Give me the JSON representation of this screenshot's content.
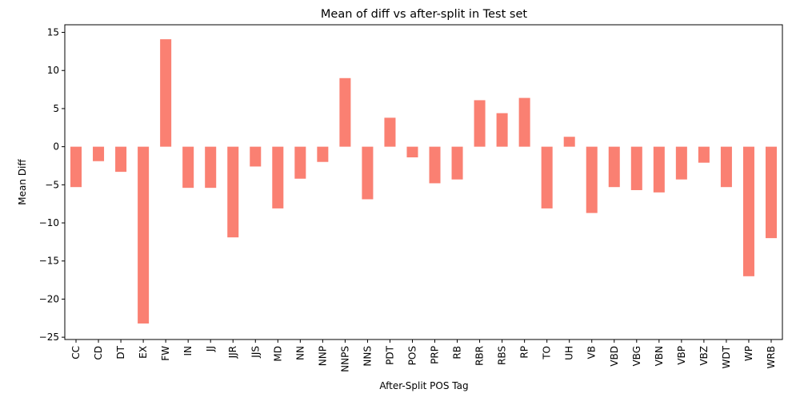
{
  "chart_data": {
    "type": "bar",
    "title": "Mean of diff vs after-split in Test set",
    "xlabel": "After-Split POS Tag",
    "ylabel": "Mean Diff",
    "ylim": [
      -25.3,
      16.0
    ],
    "yticks": [
      15,
      10,
      5,
      0,
      -5,
      -10,
      -15,
      -20,
      -25
    ],
    "grid": false,
    "legend": "none",
    "bar_color": "#fa8072",
    "categories": [
      "CC",
      "CD",
      "DT",
      "EX",
      "FW",
      "IN",
      "JJ",
      "JJR",
      "JJS",
      "MD",
      "NN",
      "NNP",
      "NNPS",
      "NNS",
      "PDT",
      "POS",
      "PRP",
      "RB",
      "RBR",
      "RBS",
      "RP",
      "TO",
      "UH",
      "VB",
      "VBD",
      "VBG",
      "VBN",
      "VBP",
      "VBZ",
      "WDT",
      "WP",
      "WRB"
    ],
    "values": [
      -5.3,
      -1.9,
      -3.3,
      -23.2,
      14.1,
      -5.4,
      -5.4,
      -11.9,
      -2.6,
      -8.1,
      -4.2,
      -2.0,
      9.0,
      -6.9,
      3.8,
      -1.4,
      -4.8,
      -4.3,
      6.1,
      4.4,
      6.4,
      -8.1,
      1.3,
      -8.7,
      -5.3,
      -5.7,
      -6.0,
      -4.3,
      -2.1,
      -5.3,
      -17.0,
      -12.0
    ]
  }
}
